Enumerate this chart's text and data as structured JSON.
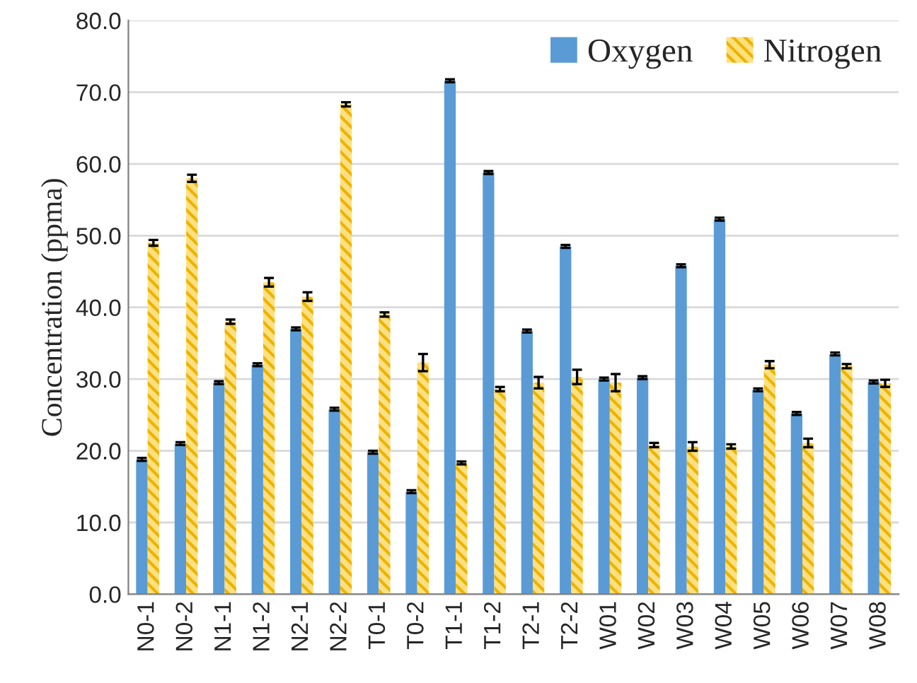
{
  "chart_data": {
    "type": "bar",
    "ylabel": "Concentration (ppma)",
    "categories": [
      "N0-1",
      "N0-2",
      "N1-1",
      "N1-2",
      "N2-1",
      "N2-2",
      "T0-1",
      "T0-2",
      "T1-1",
      "T1-2",
      "T2-1",
      "T2-2",
      "W01",
      "W02",
      "W03",
      "W04",
      "W05",
      "W06",
      "W07",
      "W08"
    ],
    "series": [
      {
        "name": "Oxygen",
        "color": "#5b9bd5",
        "values": [
          18.8,
          21.0,
          29.5,
          32.0,
          37.0,
          25.8,
          19.8,
          14.3,
          71.6,
          58.8,
          36.7,
          48.5,
          30.0,
          30.2,
          45.8,
          52.3,
          28.5,
          25.2,
          33.5,
          29.6
        ],
        "errors": [
          0.2,
          0.2,
          0.2,
          0.2,
          0.2,
          0.2,
          0.2,
          0.2,
          0.2,
          0.2,
          0.2,
          0.2,
          0.2,
          0.2,
          0.2,
          0.2,
          0.2,
          0.2,
          0.2,
          0.2
        ]
      },
      {
        "name": "Nitrogen",
        "color": "#ffc000",
        "values": [
          49.0,
          58.0,
          38.0,
          43.5,
          41.5,
          68.3,
          39.0,
          32.3,
          18.3,
          28.6,
          29.5,
          30.3,
          29.5,
          20.8,
          20.6,
          20.6,
          32.0,
          21.1,
          31.8,
          29.4
        ],
        "errors": [
          0.4,
          0.5,
          0.3,
          0.6,
          0.6,
          0.3,
          0.3,
          1.2,
          0.2,
          0.3,
          0.8,
          1.0,
          1.2,
          0.3,
          0.6,
          0.3,
          0.5,
          0.6,
          0.3,
          0.5
        ]
      }
    ],
    "ylim": [
      0,
      80
    ],
    "yticks": [
      {
        "value": 0,
        "label": "0.0"
      },
      {
        "value": 10,
        "label": "10.0"
      },
      {
        "value": 20,
        "label": "20.0"
      },
      {
        "value": 30,
        "label": "30.0"
      },
      {
        "value": 40,
        "label": "40.0"
      },
      {
        "value": 50,
        "label": "50.0"
      },
      {
        "value": 60,
        "label": "60.0"
      },
      {
        "value": 70,
        "label": "70.0"
      },
      {
        "value": 80,
        "label": "80.0"
      }
    ],
    "grid": "y",
    "legend": "top right"
  }
}
